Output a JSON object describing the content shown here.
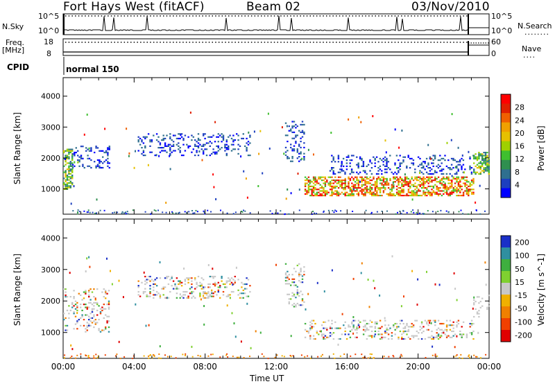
{
  "header": {
    "station": "Fort Hays West (fitACF)",
    "beam": "Beam 02",
    "date": "03/Nov/2010"
  },
  "strip_labels": {
    "nsky": "N.Sky",
    "nsearch": "N.Search",
    "nsearch_dots": "........",
    "freq": "Freq.",
    "mhz": "[MHz]",
    "nave": "Nave",
    "nave_dots": "....",
    "cpid": "CPID",
    "mode": "normal 150",
    "noise_top": "10^5",
    "noise_bottom": "10^0",
    "freq_top": "18",
    "freq_bottom": "8",
    "nave_top": "60",
    "nave_bottom": "0"
  },
  "axes": {
    "xlabel": "Time UT",
    "ylabel": "Slant Range [km]",
    "x_ticks": [
      "00:00",
      "04:00",
      "08:00",
      "12:00",
      "16:00",
      "20:00",
      "00:00"
    ],
    "y_ticks": [
      "1000",
      "2000",
      "3000",
      "4000"
    ]
  },
  "chart_data": [
    {
      "type": "heatmap",
      "panel": "power",
      "title": "",
      "xlabel": "",
      "ylabel": "Slant Range [km]",
      "x_range_hours": [
        0,
        24
      ],
      "ylim": [
        180,
        4600
      ],
      "colorbar": {
        "label": "Power [dB]",
        "ticks": [
          "4",
          "8",
          "12",
          "16",
          "20",
          "24",
          "28"
        ],
        "colors": [
          "#0000ff",
          "#1d3fbf",
          "#2f6f8f",
          "#2f8f4f",
          "#3fbf2f",
          "#9fd000",
          "#e6c000",
          "#f0a000",
          "#f06000",
          "#e02000",
          "#ff0000"
        ]
      },
      "regions": [
        {
          "t": [
            0.0,
            0.5
          ],
          "range_km": [
            1000,
            2300
          ],
          "level": "medium"
        },
        {
          "t": [
            0.5,
            2.6
          ],
          "range_km": [
            1700,
            2400
          ],
          "level": "low"
        },
        {
          "t": [
            4.2,
            10.5
          ],
          "range_km": [
            2100,
            2800
          ],
          "level": "low"
        },
        {
          "t": [
            12.5,
            13.6
          ],
          "range_km": [
            1800,
            3200
          ],
          "level": "low"
        },
        {
          "t": [
            13.6,
            23.1
          ],
          "range_km": [
            800,
            1400
          ],
          "level": "high"
        },
        {
          "t": [
            15.0,
            23.1
          ],
          "range_km": [
            1500,
            2100
          ],
          "level": "low"
        },
        {
          "t": [
            23.1,
            24.0
          ],
          "range_km": [
            1500,
            2200
          ],
          "level": "medium"
        }
      ]
    },
    {
      "type": "heatmap",
      "panel": "velocity",
      "title": "",
      "xlabel": "Time UT",
      "ylabel": "Slant Range [km]",
      "x_range_hours": [
        0,
        24
      ],
      "ylim": [
        180,
        4600
      ],
      "colorbar": {
        "label": "Velocity [m s^-1]",
        "ticks": [
          "200",
          "100",
          "50",
          "15",
          "-15",
          "-50",
          "-100",
          "-200"
        ],
        "colors": [
          "#1a2fc8",
          "#2f8fa0",
          "#3faf3f",
          "#7fd030",
          "#c8c8c8",
          "#f0b000",
          "#f08000",
          "#f04000",
          "#e00000"
        ]
      },
      "regions": [
        {
          "t": [
            0.0,
            2.6
          ],
          "range_km": [
            1000,
            2400
          ],
          "level": "mixed"
        },
        {
          "t": [
            4.2,
            10.5
          ],
          "range_km": [
            2100,
            2800
          ],
          "level": "mixed"
        },
        {
          "t": [
            12.5,
            13.6
          ],
          "range_km": [
            1800,
            3200
          ],
          "level": "mixed"
        },
        {
          "t": [
            13.6,
            23.1
          ],
          "range_km": [
            800,
            1400
          ],
          "level": "mixed"
        },
        {
          "t": [
            23.1,
            24.0
          ],
          "range_km": [
            1500,
            2200
          ],
          "level": "near-zero"
        }
      ]
    }
  ]
}
